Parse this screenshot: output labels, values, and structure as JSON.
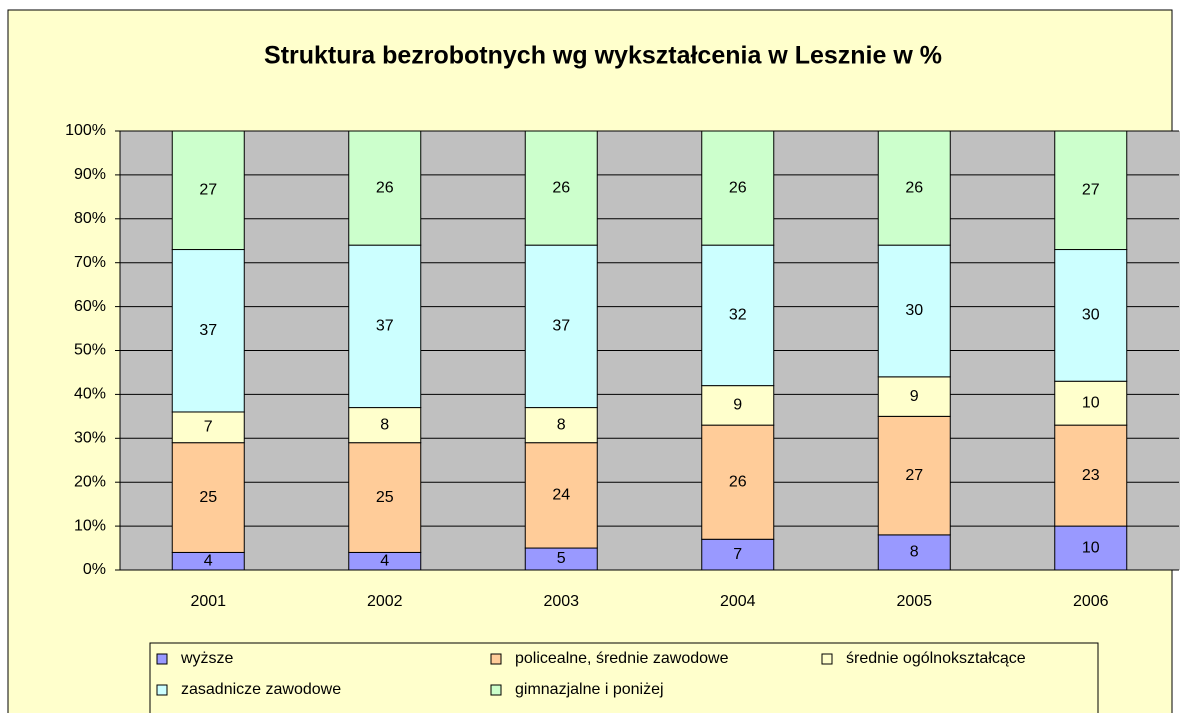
{
  "chart_data": {
    "type": "bar",
    "stacked": true,
    "title": "Struktura bezrobotnych wg wykształcenia w Lesznie w %",
    "categories": [
      "2001",
      "2002",
      "2003",
      "2004",
      "2005",
      "2006"
    ],
    "series": [
      {
        "name": "wyższe",
        "color": "#9999ff",
        "values": [
          4,
          4,
          5,
          7,
          8,
          10
        ]
      },
      {
        "name": "policealne, średnie zawodowe",
        "color": "#ffcc99",
        "values": [
          25,
          25,
          24,
          26,
          27,
          23
        ]
      },
      {
        "name": "średnie ogólnokształcące",
        "color": "#ffffcc",
        "values": [
          7,
          8,
          8,
          9,
          9,
          10
        ]
      },
      {
        "name": "zasadnicze zawodowe",
        "color": "#ccffff",
        "values": [
          37,
          37,
          37,
          32,
          30,
          30
        ]
      },
      {
        "name": "gimnazjalne i poniżej",
        "color": "#ccffcc",
        "values": [
          27,
          26,
          26,
          26,
          26,
          27
        ]
      }
    ],
    "ylim": [
      0,
      100
    ],
    "yticks": [
      {
        "value": 0,
        "label": "0%"
      },
      {
        "value": 10,
        "label": "10%"
      },
      {
        "value": 20,
        "label": "20%"
      },
      {
        "value": 30,
        "label": "30%"
      },
      {
        "value": 40,
        "label": "40%"
      },
      {
        "value": 50,
        "label": "50%"
      },
      {
        "value": 60,
        "label": "60%"
      },
      {
        "value": 70,
        "label": "70%"
      },
      {
        "value": 80,
        "label": "80%"
      },
      {
        "value": 90,
        "label": "90%"
      },
      {
        "value": 100,
        "label": "100%"
      }
    ],
    "grid": true,
    "legend": "bottom"
  }
}
